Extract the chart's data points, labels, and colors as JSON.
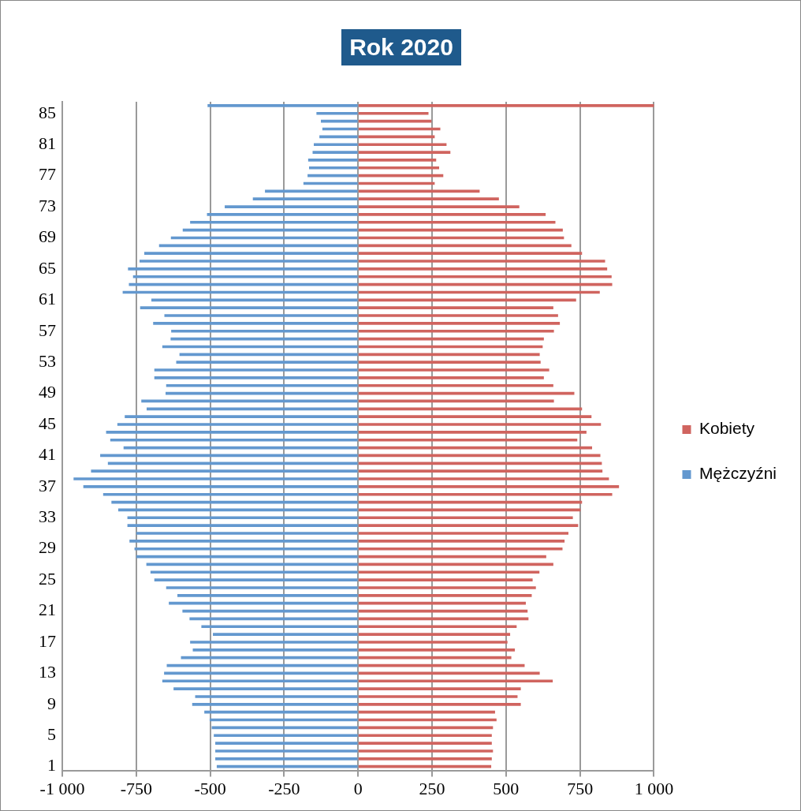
{
  "chart_data": {
    "type": "bar",
    "title": "Rok 2020",
    "orientation": "horizontal",
    "stacked": true,
    "categories": [
      null,
      "85",
      null,
      null,
      null,
      "81",
      null,
      null,
      null,
      "77",
      null,
      null,
      null,
      "73",
      null,
      null,
      null,
      "69",
      null,
      null,
      null,
      "65",
      null,
      null,
      null,
      "61",
      null,
      null,
      null,
      "57",
      null,
      null,
      null,
      "53",
      null,
      null,
      null,
      "49",
      null,
      null,
      null,
      "45",
      null,
      null,
      null,
      "41",
      null,
      null,
      null,
      "37",
      null,
      null,
      null,
      "33",
      null,
      null,
      null,
      "29",
      null,
      null,
      null,
      "25",
      null,
      null,
      null,
      "21",
      null,
      null,
      null,
      "17",
      null,
      null,
      null,
      "13",
      null,
      null,
      null,
      "9",
      null,
      null,
      null,
      "5",
      null,
      null,
      null,
      "1"
    ],
    "series": [
      {
        "name": "Kobiety",
        "color": "#d0645f",
        "values": [
          1000,
          237,
          247,
          277,
          258,
          298,
          311,
          263,
          273,
          287,
          258,
          410,
          475,
          544,
          633,
          666,
          691,
          695,
          720,
          756,
          834,
          841,
          856,
          858,
          816,
          736,
          659,
          675,
          681,
          661,
          627,
          623,
          613,
          616,
          645,
          627,
          659,
          730,
          661,
          756,
          788,
          820,
          771,
          740,
          790,
          818,
          823,
          825,
          847,
          881,
          858,
          756,
          751,
          725,
          743,
          710,
          697,
          690,
          635,
          659,
          612,
          589,
          600,
          586,
          566,
          572,
          575,
          535,
          513,
          504,
          529,
          517,
          562,
          613,
          657,
          549,
          538,
          549,
          462,
          467,
          455,
          451,
          451,
          455,
          451,
          449
        ]
      },
      {
        "name": "Mężczyźni",
        "color": "#6398cf",
        "values": [
          -508,
          -140,
          -125,
          -120,
          -130,
          -149,
          -153,
          -168,
          -165,
          -170,
          -184,
          -314,
          -355,
          -450,
          -510,
          -567,
          -592,
          -632,
          -672,
          -722,
          -738,
          -777,
          -760,
          -774,
          -795,
          -698,
          -736,
          -654,
          -692,
          -631,
          -633,
          -661,
          -603,
          -614,
          -688,
          -688,
          -648,
          -650,
          -732,
          -714,
          -788,
          -813,
          -851,
          -837,
          -792,
          -871,
          -845,
          -902,
          -961,
          -928,
          -861,
          -833,
          -810,
          -779,
          -779,
          -749,
          -772,
          -755,
          -749,
          -715,
          -701,
          -688,
          -648,
          -610,
          -639,
          -593,
          -569,
          -529,
          -490,
          -567,
          -558,
          -598,
          -646,
          -655,
          -661,
          -623,
          -550,
          -560,
          -519,
          -501,
          -494,
          -487,
          -482,
          -482,
          -482,
          -477
        ]
      }
    ],
    "xlim": [
      -1000,
      1000
    ],
    "xticks": [
      {
        "value": -1000,
        "label": "-1 000"
      },
      -750,
      -500,
      -250,
      0,
      250,
      500,
      750,
      {
        "value": 1000,
        "label": "1 000"
      }
    ],
    "grid": "x",
    "legend": "right"
  }
}
